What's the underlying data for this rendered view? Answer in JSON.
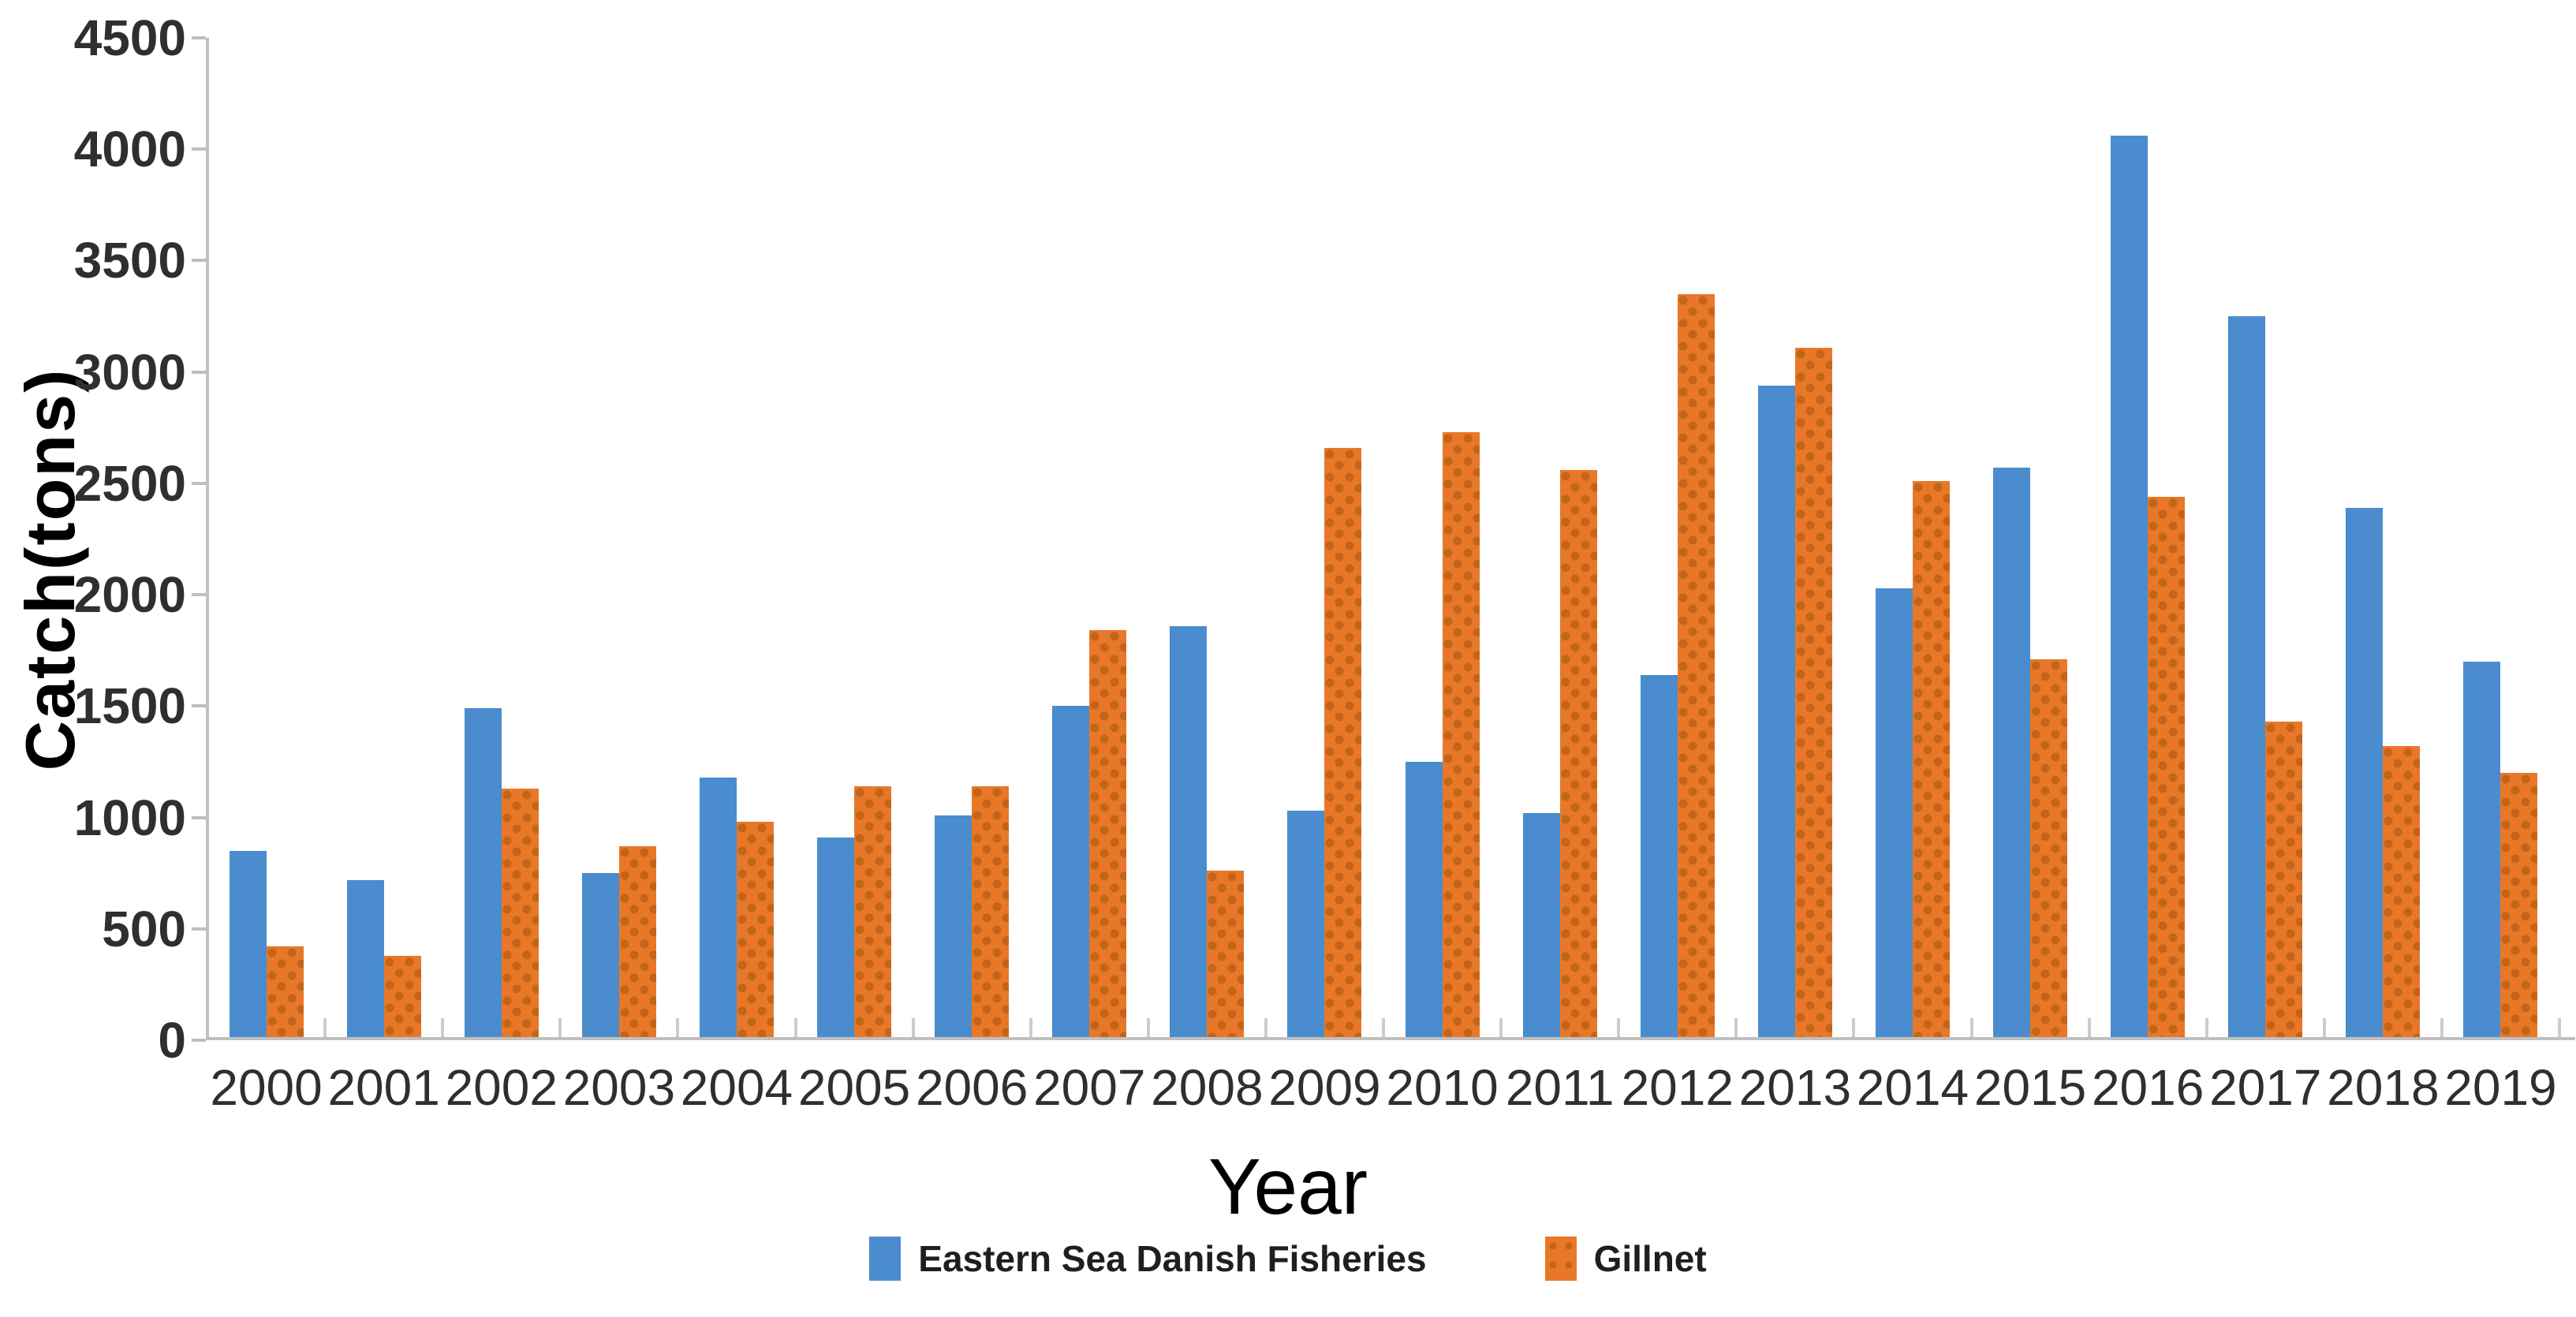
{
  "chart_data": {
    "type": "bar",
    "title": "",
    "xlabel": "Year",
    "ylabel": "Catch(tons)",
    "ylim": [
      0,
      4500
    ],
    "ytick_step": 500,
    "y_tick_labels": [
      "0",
      "500",
      "1000",
      "1500",
      "2000",
      "2500",
      "3000",
      "3500",
      "4000",
      "4500"
    ],
    "grid": false,
    "legend_position": "bottom",
    "categories": [
      "2000",
      "2001",
      "2002",
      "2003",
      "2004",
      "2005",
      "2006",
      "2007",
      "2008",
      "2009",
      "2010",
      "2011",
      "2012",
      "2013",
      "2014",
      "2015",
      "2016",
      "2017",
      "2018",
      "2019"
    ],
    "series": [
      {
        "name": "Eastern Sea Danish Fisheries",
        "color": "#4A8CCD",
        "values": [
          850,
          720,
          1490,
          750,
          1180,
          910,
          1010,
          1500,
          1860,
          1030,
          1250,
          1020,
          1640,
          2940,
          2030,
          2570,
          4060,
          3250,
          2390,
          1700
        ]
      },
      {
        "name": "Gillnet",
        "color": "#E87828",
        "values": [
          420,
          380,
          1130,
          870,
          980,
          1140,
          1140,
          1840,
          760,
          2660,
          2730,
          2560,
          3350,
          3110,
          2510,
          1710,
          2440,
          1430,
          1320,
          1200
        ]
      }
    ]
  }
}
